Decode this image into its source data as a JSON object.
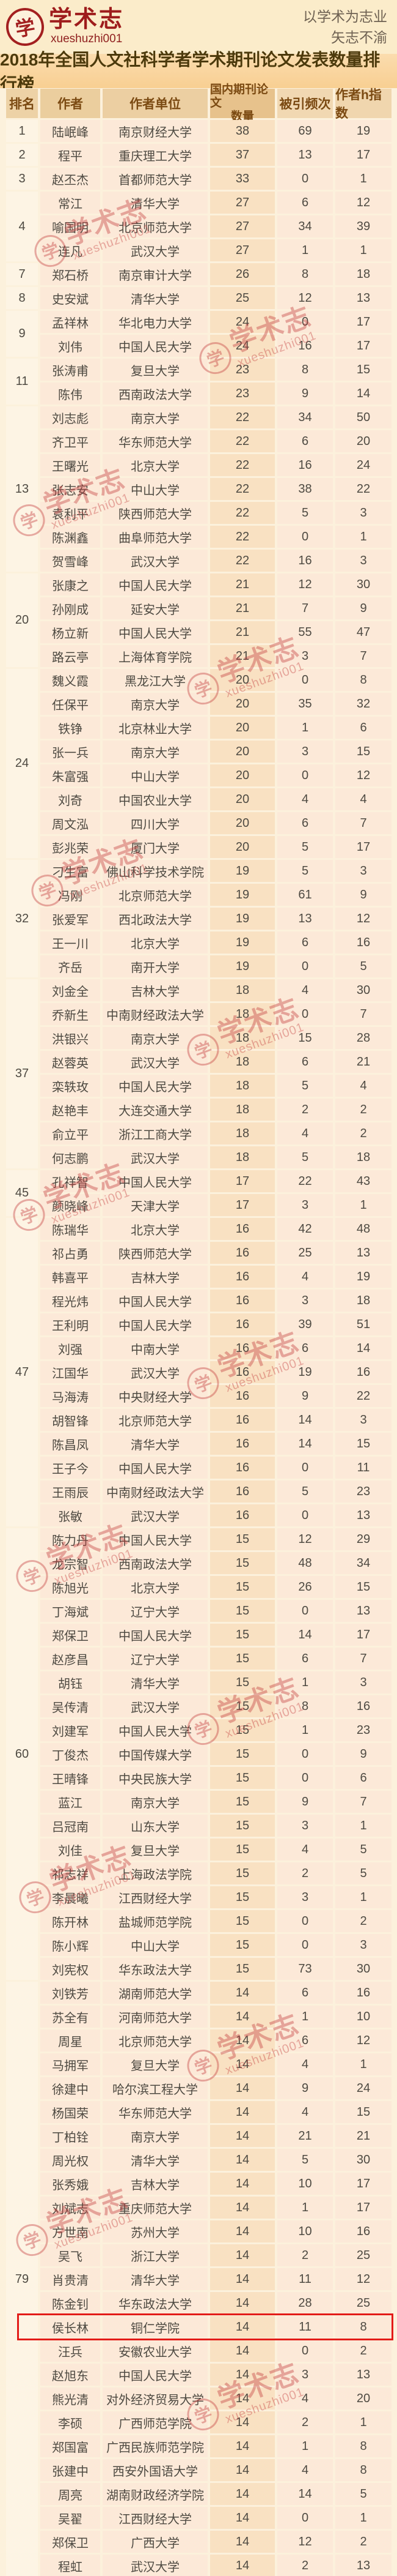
{
  "brand": {
    "logo_text": "学术志",
    "logo_sub": "xueshuzhi001",
    "logo_glyph": "学"
  },
  "slogan": {
    "line1": "以学术为志业",
    "line2": "矢志不渝"
  },
  "title": "2018年全国人文社科学者学术期刊论文发表数量排行榜",
  "colors": {
    "accent_red": "#e31b18",
    "brand_red": "#9e1c1c",
    "header_tan": "#eccfa2",
    "band_orange": "#f9d49c"
  },
  "table": {
    "headers": {
      "rank": "排名",
      "author": "作者",
      "unit": "作者单位",
      "papers_line1": "国内期刊论文",
      "papers_line2": "数量",
      "cited": "被引频次",
      "hindex": "作者h指数"
    },
    "highlighted_author": "侯长林",
    "rank_groups": [
      {
        "label": "1",
        "span": 1
      },
      {
        "label": "2",
        "span": 1
      },
      {
        "label": "3",
        "span": 1
      },
      {
        "label": "4",
        "span": 3
      },
      {
        "label": "7",
        "span": 1
      },
      {
        "label": "8",
        "span": 1
      },
      {
        "label": "9",
        "span": 2
      },
      {
        "label": "11",
        "span": 2
      },
      {
        "label": "13",
        "span": 7
      },
      {
        "label": "20",
        "span": 4
      },
      {
        "label": "24",
        "span": 8
      },
      {
        "label": "32",
        "span": 5
      },
      {
        "label": "37",
        "span": 8
      },
      {
        "label": "45",
        "span": 2
      },
      {
        "label": "47",
        "span": 13
      },
      {
        "label": "60",
        "span": 19
      },
      {
        "label": "79",
        "span": 25
      }
    ],
    "rows": [
      {
        "author": "陆岷峰",
        "unit": "南京财经大学",
        "papers": 38,
        "cited": 69,
        "hindex": 19
      },
      {
        "author": "程平",
        "unit": "重庆理工大学",
        "papers": 37,
        "cited": 13,
        "hindex": 17
      },
      {
        "author": "赵丕杰",
        "unit": "首都师范大学",
        "papers": 33,
        "cited": 0,
        "hindex": 1
      },
      {
        "author": "常江",
        "unit": "清华大学",
        "papers": 27,
        "cited": 6,
        "hindex": 12
      },
      {
        "author": "喻国明",
        "unit": "北京师范大学",
        "papers": 27,
        "cited": 34,
        "hindex": 39
      },
      {
        "author": "连凡",
        "unit": "武汉大学",
        "papers": 27,
        "cited": 1,
        "hindex": 1
      },
      {
        "author": "郑石桥",
        "unit": "南京审计大学",
        "papers": 26,
        "cited": 8,
        "hindex": 18
      },
      {
        "author": "史安斌",
        "unit": "清华大学",
        "papers": 25,
        "cited": 12,
        "hindex": 13
      },
      {
        "author": "孟祥林",
        "unit": "华北电力大学",
        "papers": 24,
        "cited": 0,
        "hindex": 17
      },
      {
        "author": "刘伟",
        "unit": "中国人民大学",
        "papers": 24,
        "cited": 16,
        "hindex": 17
      },
      {
        "author": "张涛甫",
        "unit": "复旦大学",
        "papers": 23,
        "cited": 8,
        "hindex": 15
      },
      {
        "author": "陈伟",
        "unit": "西南政法大学",
        "papers": 23,
        "cited": 9,
        "hindex": 14
      },
      {
        "author": "刘志彪",
        "unit": "南京大学",
        "papers": 22,
        "cited": 34,
        "hindex": 50
      },
      {
        "author": "齐卫平",
        "unit": "华东师范大学",
        "papers": 22,
        "cited": 6,
        "hindex": 20
      },
      {
        "author": "王曙光",
        "unit": "北京大学",
        "papers": 22,
        "cited": 16,
        "hindex": 24
      },
      {
        "author": "张志安",
        "unit": "中山大学",
        "papers": 22,
        "cited": 38,
        "hindex": 22
      },
      {
        "author": "袁利平",
        "unit": "陕西师范大学",
        "papers": 22,
        "cited": 5,
        "hindex": 3
      },
      {
        "author": "陈渊鑫",
        "unit": "曲阜师范大学",
        "papers": 22,
        "cited": 0,
        "hindex": 1
      },
      {
        "author": "贺雪峰",
        "unit": "武汉大学",
        "papers": 22,
        "cited": 16,
        "hindex": 3
      },
      {
        "author": "张康之",
        "unit": "中国人民大学",
        "papers": 21,
        "cited": 12,
        "hindex": 30
      },
      {
        "author": "孙刚成",
        "unit": "延安大学",
        "papers": 21,
        "cited": 7,
        "hindex": 9
      },
      {
        "author": "杨立新",
        "unit": "中国人民大学",
        "papers": 21,
        "cited": 55,
        "hindex": 47
      },
      {
        "author": "路云亭",
        "unit": "上海体育学院",
        "papers": 21,
        "cited": 3,
        "hindex": 7
      },
      {
        "author": "魏义霞",
        "unit": "黑龙江大学",
        "papers": 20,
        "cited": 0,
        "hindex": 8
      },
      {
        "author": "任保平",
        "unit": "南京大学",
        "papers": 20,
        "cited": 35,
        "hindex": 32
      },
      {
        "author": "铁铮",
        "unit": "北京林业大学",
        "papers": 20,
        "cited": 1,
        "hindex": 6
      },
      {
        "author": "张一兵",
        "unit": "南京大学",
        "papers": 20,
        "cited": 3,
        "hindex": 15
      },
      {
        "author": "朱富强",
        "unit": "中山大学",
        "papers": 20,
        "cited": 0,
        "hindex": 12
      },
      {
        "author": "刘奇",
        "unit": "中国农业大学",
        "papers": 20,
        "cited": 4,
        "hindex": 4
      },
      {
        "author": "周文泓",
        "unit": "四川大学",
        "papers": 20,
        "cited": 6,
        "hindex": 7
      },
      {
        "author": "彭兆荣",
        "unit": "厦门大学",
        "papers": 20,
        "cited": 5,
        "hindex": 17
      },
      {
        "author": "刁生富",
        "unit": "佛山科学技术学院",
        "papers": 19,
        "cited": 5,
        "hindex": 3
      },
      {
        "author": "冯刚",
        "unit": "北京师范大学",
        "papers": 19,
        "cited": 61,
        "hindex": 9
      },
      {
        "author": "张爱军",
        "unit": "西北政法大学",
        "papers": 19,
        "cited": 13,
        "hindex": 12
      },
      {
        "author": "王一川",
        "unit": "北京大学",
        "papers": 19,
        "cited": 6,
        "hindex": 16
      },
      {
        "author": "齐岳",
        "unit": "南开大学",
        "papers": 19,
        "cited": 0,
        "hindex": 5
      },
      {
        "author": "刘金全",
        "unit": "吉林大学",
        "papers": 18,
        "cited": 4,
        "hindex": 30
      },
      {
        "author": "乔新生",
        "unit": "中南财经政法大学",
        "papers": 18,
        "cited": 0,
        "hindex": 7
      },
      {
        "author": "洪银兴",
        "unit": "南京大学",
        "papers": 18,
        "cited": 15,
        "hindex": 28
      },
      {
        "author": "赵蓉英",
        "unit": "武汉大学",
        "papers": 18,
        "cited": 6,
        "hindex": 21
      },
      {
        "author": "栾轶玫",
        "unit": "中国人民大学",
        "papers": 18,
        "cited": 5,
        "hindex": 4
      },
      {
        "author": "赵艳丰",
        "unit": "大连交通大学",
        "papers": 18,
        "cited": 2,
        "hindex": 2
      },
      {
        "author": "俞立平",
        "unit": "浙江工商大学",
        "papers": 18,
        "cited": 4,
        "hindex": 2
      },
      {
        "author": "何志鹏",
        "unit": "武汉大学",
        "papers": 18,
        "cited": 5,
        "hindex": 18
      },
      {
        "author": "孔祥智",
        "unit": "中国人民大学",
        "papers": 17,
        "cited": 22,
        "hindex": 43
      },
      {
        "author": "颜晓峰",
        "unit": "天津大学",
        "papers": 17,
        "cited": 3,
        "hindex": 1
      },
      {
        "author": "陈瑞华",
        "unit": "北京大学",
        "papers": 16,
        "cited": 42,
        "hindex": 48
      },
      {
        "author": "祁占勇",
        "unit": "陕西师范大学",
        "papers": 16,
        "cited": 25,
        "hindex": 13
      },
      {
        "author": "韩喜平",
        "unit": "吉林大学",
        "papers": 16,
        "cited": 4,
        "hindex": 19
      },
      {
        "author": "程光炜",
        "unit": "中国人民大学",
        "papers": 16,
        "cited": 3,
        "hindex": 18
      },
      {
        "author": "王利明",
        "unit": "中国人民大学",
        "papers": 16,
        "cited": 39,
        "hindex": 51
      },
      {
        "author": "刘强",
        "unit": "中南大学",
        "papers": 16,
        "cited": 6,
        "hindex": 14
      },
      {
        "author": "江国华",
        "unit": "武汉大学",
        "papers": 16,
        "cited": 19,
        "hindex": 16
      },
      {
        "author": "马海涛",
        "unit": "中央财经大学",
        "papers": 16,
        "cited": 9,
        "hindex": 22
      },
      {
        "author": "胡智锋",
        "unit": "北京师范大学",
        "papers": 16,
        "cited": 14,
        "hindex": 3
      },
      {
        "author": "陈昌凤",
        "unit": "清华大学",
        "papers": 16,
        "cited": 14,
        "hindex": 15
      },
      {
        "author": "王子今",
        "unit": "中国人民大学",
        "papers": 16,
        "cited": 0,
        "hindex": 11
      },
      {
        "author": "王雨辰",
        "unit": "中南财经政法大学",
        "papers": 16,
        "cited": 5,
        "hindex": 23
      },
      {
        "author": "张敏",
        "unit": "武汉大学",
        "papers": 16,
        "cited": 0,
        "hindex": 13
      },
      {
        "author": "陈力丹",
        "unit": "中国人民大学",
        "papers": 15,
        "cited": 12,
        "hindex": 29
      },
      {
        "author": "龙宗智",
        "unit": "西南政法大学",
        "papers": 15,
        "cited": 48,
        "hindex": 34
      },
      {
        "author": "陈旭光",
        "unit": "北京大学",
        "papers": 15,
        "cited": 26,
        "hindex": 15
      },
      {
        "author": "丁海斌",
        "unit": "辽宁大学",
        "papers": 15,
        "cited": 0,
        "hindex": 13
      },
      {
        "author": "郑保卫",
        "unit": "中国人民大学",
        "papers": 15,
        "cited": 14,
        "hindex": 17
      },
      {
        "author": "赵彦昌",
        "unit": "辽宁大学",
        "papers": 15,
        "cited": 6,
        "hindex": 7
      },
      {
        "author": "胡钰",
        "unit": "清华大学",
        "papers": 15,
        "cited": 1,
        "hindex": 3
      },
      {
        "author": "吴传清",
        "unit": "武汉大学",
        "papers": 15,
        "cited": 8,
        "hindex": 16
      },
      {
        "author": "刘建军",
        "unit": "中国人民大学",
        "papers": 15,
        "cited": 1,
        "hindex": 23
      },
      {
        "author": "丁俊杰",
        "unit": "中国传媒大学",
        "papers": 15,
        "cited": 0,
        "hindex": 9
      },
      {
        "author": "王晴锋",
        "unit": "中央民族大学",
        "papers": 15,
        "cited": 0,
        "hindex": 6
      },
      {
        "author": "蓝江",
        "unit": "南京大学",
        "papers": 15,
        "cited": 9,
        "hindex": 7
      },
      {
        "author": "吕冠南",
        "unit": "山东大学",
        "papers": 15,
        "cited": 3,
        "hindex": 1
      },
      {
        "author": "刘佳",
        "unit": "复旦大学",
        "papers": 15,
        "cited": 4,
        "hindex": 5
      },
      {
        "author": "祁志祥",
        "unit": "上海政法学院",
        "papers": 15,
        "cited": 2,
        "hindex": 5
      },
      {
        "author": "李晨曦",
        "unit": "江西财经大学",
        "papers": 15,
        "cited": 3,
        "hindex": 1
      },
      {
        "author": "陈开林",
        "unit": "盐城师范学院",
        "papers": 15,
        "cited": 0,
        "hindex": 2
      },
      {
        "author": "陈小辉",
        "unit": "中山大学",
        "papers": 15,
        "cited": 0,
        "hindex": 3
      },
      {
        "author": "刘宪权",
        "unit": "华东政法大学",
        "papers": 15,
        "cited": 73,
        "hindex": 30
      },
      {
        "author": "刘铁芳",
        "unit": "湖南师范大学",
        "papers": 14,
        "cited": 6,
        "hindex": 16
      },
      {
        "author": "苏全有",
        "unit": "河南师范大学",
        "papers": 14,
        "cited": 1,
        "hindex": 10
      },
      {
        "author": "周星",
        "unit": "北京师范大学",
        "papers": 14,
        "cited": 6,
        "hindex": 12
      },
      {
        "author": "马拥军",
        "unit": "复旦大学",
        "papers": 14,
        "cited": 4,
        "hindex": 1
      },
      {
        "author": "徐建中",
        "unit": "哈尔滨工程大学",
        "papers": 14,
        "cited": 9,
        "hindex": 24
      },
      {
        "author": "杨国荣",
        "unit": "华东师范大学",
        "papers": 14,
        "cited": 4,
        "hindex": 15
      },
      {
        "author": "丁柏铨",
        "unit": "南京大学",
        "papers": 14,
        "cited": 21,
        "hindex": 21
      },
      {
        "author": "周光权",
        "unit": "清华大学",
        "papers": 14,
        "cited": 5,
        "hindex": 30
      },
      {
        "author": "张秀娥",
        "unit": "吉林大学",
        "papers": 14,
        "cited": 10,
        "hindex": 17
      },
      {
        "author": "刘斌志",
        "unit": "重庆师范大学",
        "papers": 14,
        "cited": 1,
        "hindex": 17
      },
      {
        "author": "方世南",
        "unit": "苏州大学",
        "papers": 14,
        "cited": 10,
        "hindex": 16
      },
      {
        "author": "吴飞",
        "unit": "浙江大学",
        "papers": 14,
        "cited": 2,
        "hindex": 25
      },
      {
        "author": "肖贵清",
        "unit": "清华大学",
        "papers": 14,
        "cited": 11,
        "hindex": 12
      },
      {
        "author": "陈金钊",
        "unit": "华东政法大学",
        "papers": 14,
        "cited": 28,
        "hindex": 25
      },
      {
        "author": "侯长林",
        "unit": "铜仁学院",
        "papers": 14,
        "cited": 11,
        "hindex": 8
      },
      {
        "author": "汪兵",
        "unit": "安徽农业大学",
        "papers": 14,
        "cited": 0,
        "hindex": 2
      },
      {
        "author": "赵旭东",
        "unit": "中国人民大学",
        "papers": 14,
        "cited": 3,
        "hindex": 13
      },
      {
        "author": "熊光清",
        "unit": "对外经济贸易大学",
        "papers": 14,
        "cited": 4,
        "hindex": 20
      },
      {
        "author": "李硕",
        "unit": "广西师范学院",
        "papers": 14,
        "cited": 2,
        "hindex": 1
      },
      {
        "author": "郑国富",
        "unit": "广西民族师范学院",
        "papers": 14,
        "cited": 1,
        "hindex": 8
      },
      {
        "author": "张建中",
        "unit": "西安外国语大学",
        "papers": 14,
        "cited": 4,
        "hindex": 8
      },
      {
        "author": "周亮",
        "unit": "湖南财政经济学院",
        "papers": 14,
        "cited": 14,
        "hindex": 5
      },
      {
        "author": "吴翟",
        "unit": "江西财经大学",
        "papers": 14,
        "cited": 0,
        "hindex": 1
      },
      {
        "author": "郑保卫",
        "unit": "广西大学",
        "papers": 14,
        "cited": 12,
        "hindex": 2
      },
      {
        "author": "程虹",
        "unit": "武汉大学",
        "papers": 14,
        "cited": 2,
        "hindex": 13
      }
    ]
  },
  "watermark": {
    "text": "学术志",
    "sub": "xueshuzhi001",
    "glyph": "学"
  }
}
